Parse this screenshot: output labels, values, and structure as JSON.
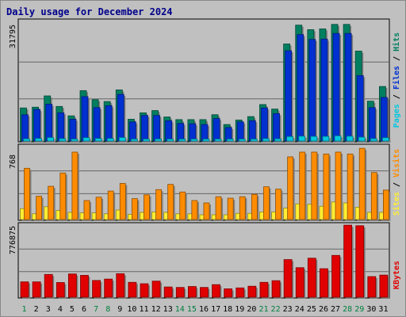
{
  "title": "Daily usage for December 2024",
  "colors": {
    "hits": "#007f60",
    "files": "#0030d0",
    "pages": "#00c8e0",
    "visits": "#ff8c00",
    "sites": "#ffee33",
    "kbytes": "#e00000",
    "weekday_label": "#000000",
    "weekend_label": "#007f3f",
    "plot_bg": "#c0c0c0",
    "grid": "#666666"
  },
  "chart_data": [
    {
      "type": "bar",
      "panel": "hits-files-pages",
      "categories": [
        "1",
        "2",
        "3",
        "4",
        "5",
        "6",
        "7",
        "8",
        "9",
        "10",
        "11",
        "12",
        "13",
        "14",
        "15",
        "16",
        "17",
        "18",
        "19",
        "20",
        "21",
        "22",
        "23",
        "24",
        "25",
        "26",
        "27",
        "28",
        "29",
        "30",
        "31"
      ],
      "weekend_days": [
        "1",
        "7",
        "8",
        "14",
        "15",
        "21",
        "22",
        "28",
        "29"
      ],
      "y_max_label": "31795",
      "ylim": [
        0,
        31795
      ],
      "legend": [
        "Pages",
        "Files",
        "Hits"
      ],
      "series": [
        {
          "name": "Hits",
          "values": [
            8800,
            9000,
            12000,
            9200,
            6700,
            13400,
            11000,
            10500,
            13600,
            5800,
            7500,
            8100,
            6400,
            5700,
            5700,
            5700,
            7000,
            4400,
            5600,
            6500,
            9700,
            8500,
            25800,
            30800,
            29600,
            29800,
            31000,
            31000,
            23900,
            10600,
            14500
          ]
        },
        {
          "name": "Files",
          "values": [
            7000,
            8400,
            9800,
            7500,
            5800,
            11800,
            8900,
            9400,
            12400,
            5100,
            6800,
            6800,
            5400,
            4700,
            4600,
            4400,
            6000,
            3600,
            5100,
            5400,
            8800,
            7300,
            24000,
            28300,
            27000,
            27100,
            28600,
            28600,
            17400,
            8900,
            11600
          ]
        },
        {
          "name": "Pages",
          "values": [
            600,
            700,
            950,
            650,
            500,
            900,
            700,
            700,
            950,
            450,
            500,
            550,
            500,
            420,
            420,
            400,
            500,
            350,
            400,
            450,
            650,
            600,
            1200,
            1300,
            1250,
            1250,
            1400,
            1300,
            1050,
            650,
            900
          ]
        }
      ]
    },
    {
      "type": "bar",
      "panel": "visits-sites",
      "categories": [
        "1",
        "2",
        "3",
        "4",
        "5",
        "6",
        "7",
        "8",
        "9",
        "10",
        "11",
        "12",
        "13",
        "14",
        "15",
        "16",
        "17",
        "18",
        "19",
        "20",
        "21",
        "22",
        "23",
        "24",
        "25",
        "26",
        "27",
        "28",
        "29",
        "30",
        "31"
      ],
      "y_max_label": "768",
      "ylim": [
        0,
        768
      ],
      "legend": [
        "Sites",
        "Visits"
      ],
      "series": [
        {
          "name": "Visits",
          "values": [
            540,
            245,
            350,
            490,
            710,
            200,
            235,
            300,
            380,
            220,
            260,
            315,
            370,
            290,
            200,
            175,
            240,
            225,
            240,
            265,
            345,
            320,
            660,
            710,
            710,
            690,
            710,
            690,
            750,
            495,
            310
          ]
        },
        {
          "name": "Sites",
          "values": [
            115,
            60,
            135,
            95,
            75,
            70,
            70,
            60,
            100,
            55,
            75,
            80,
            75,
            60,
            60,
            50,
            50,
            50,
            65,
            65,
            80,
            80,
            120,
            165,
            160,
            140,
            185,
            175,
            130,
            75,
            75
          ]
        }
      ]
    },
    {
      "type": "bar",
      "panel": "kbytes",
      "categories": [
        "1",
        "2",
        "3",
        "4",
        "5",
        "6",
        "7",
        "8",
        "9",
        "10",
        "11",
        "12",
        "13",
        "14",
        "15",
        "16",
        "17",
        "18",
        "19",
        "20",
        "21",
        "22",
        "23",
        "24",
        "25",
        "26",
        "27",
        "28",
        "29",
        "30",
        "31"
      ],
      "y_max_label": "776875",
      "ylim": [
        0,
        776875
      ],
      "legend": [
        "KBytes"
      ],
      "series": [
        {
          "name": "KBytes",
          "values": [
            165000,
            165000,
            245000,
            158000,
            250000,
            235000,
            180000,
            195000,
            253000,
            160000,
            145000,
            173000,
            110000,
            105000,
            115000,
            105000,
            135000,
            90000,
            100000,
            118000,
            160000,
            178000,
            405000,
            318000,
            420000,
            307000,
            450000,
            776000,
            770000,
            222000,
            238000
          ]
        }
      ]
    }
  ]
}
